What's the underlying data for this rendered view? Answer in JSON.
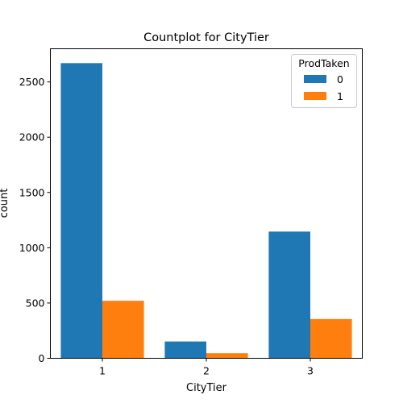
{
  "chart_data": {
    "type": "bar",
    "title": "Countplot for CityTier",
    "xlabel": "CityTier",
    "ylabel": "count",
    "categories": [
      "1",
      "2",
      "3"
    ],
    "series": [
      {
        "name": "0",
        "values": [
          2670,
          152,
          1146
        ],
        "color": "#1f77b4"
      },
      {
        "name": "1",
        "values": [
          520,
          46,
          355
        ],
        "color": "#ff7f0e"
      }
    ],
    "ylim": [
      0,
      2800
    ],
    "yticks": [
      0,
      500,
      1000,
      1500,
      2000,
      2500
    ],
    "legend": {
      "title": "ProdTaken",
      "placement": "top-right"
    },
    "grid": false
  }
}
